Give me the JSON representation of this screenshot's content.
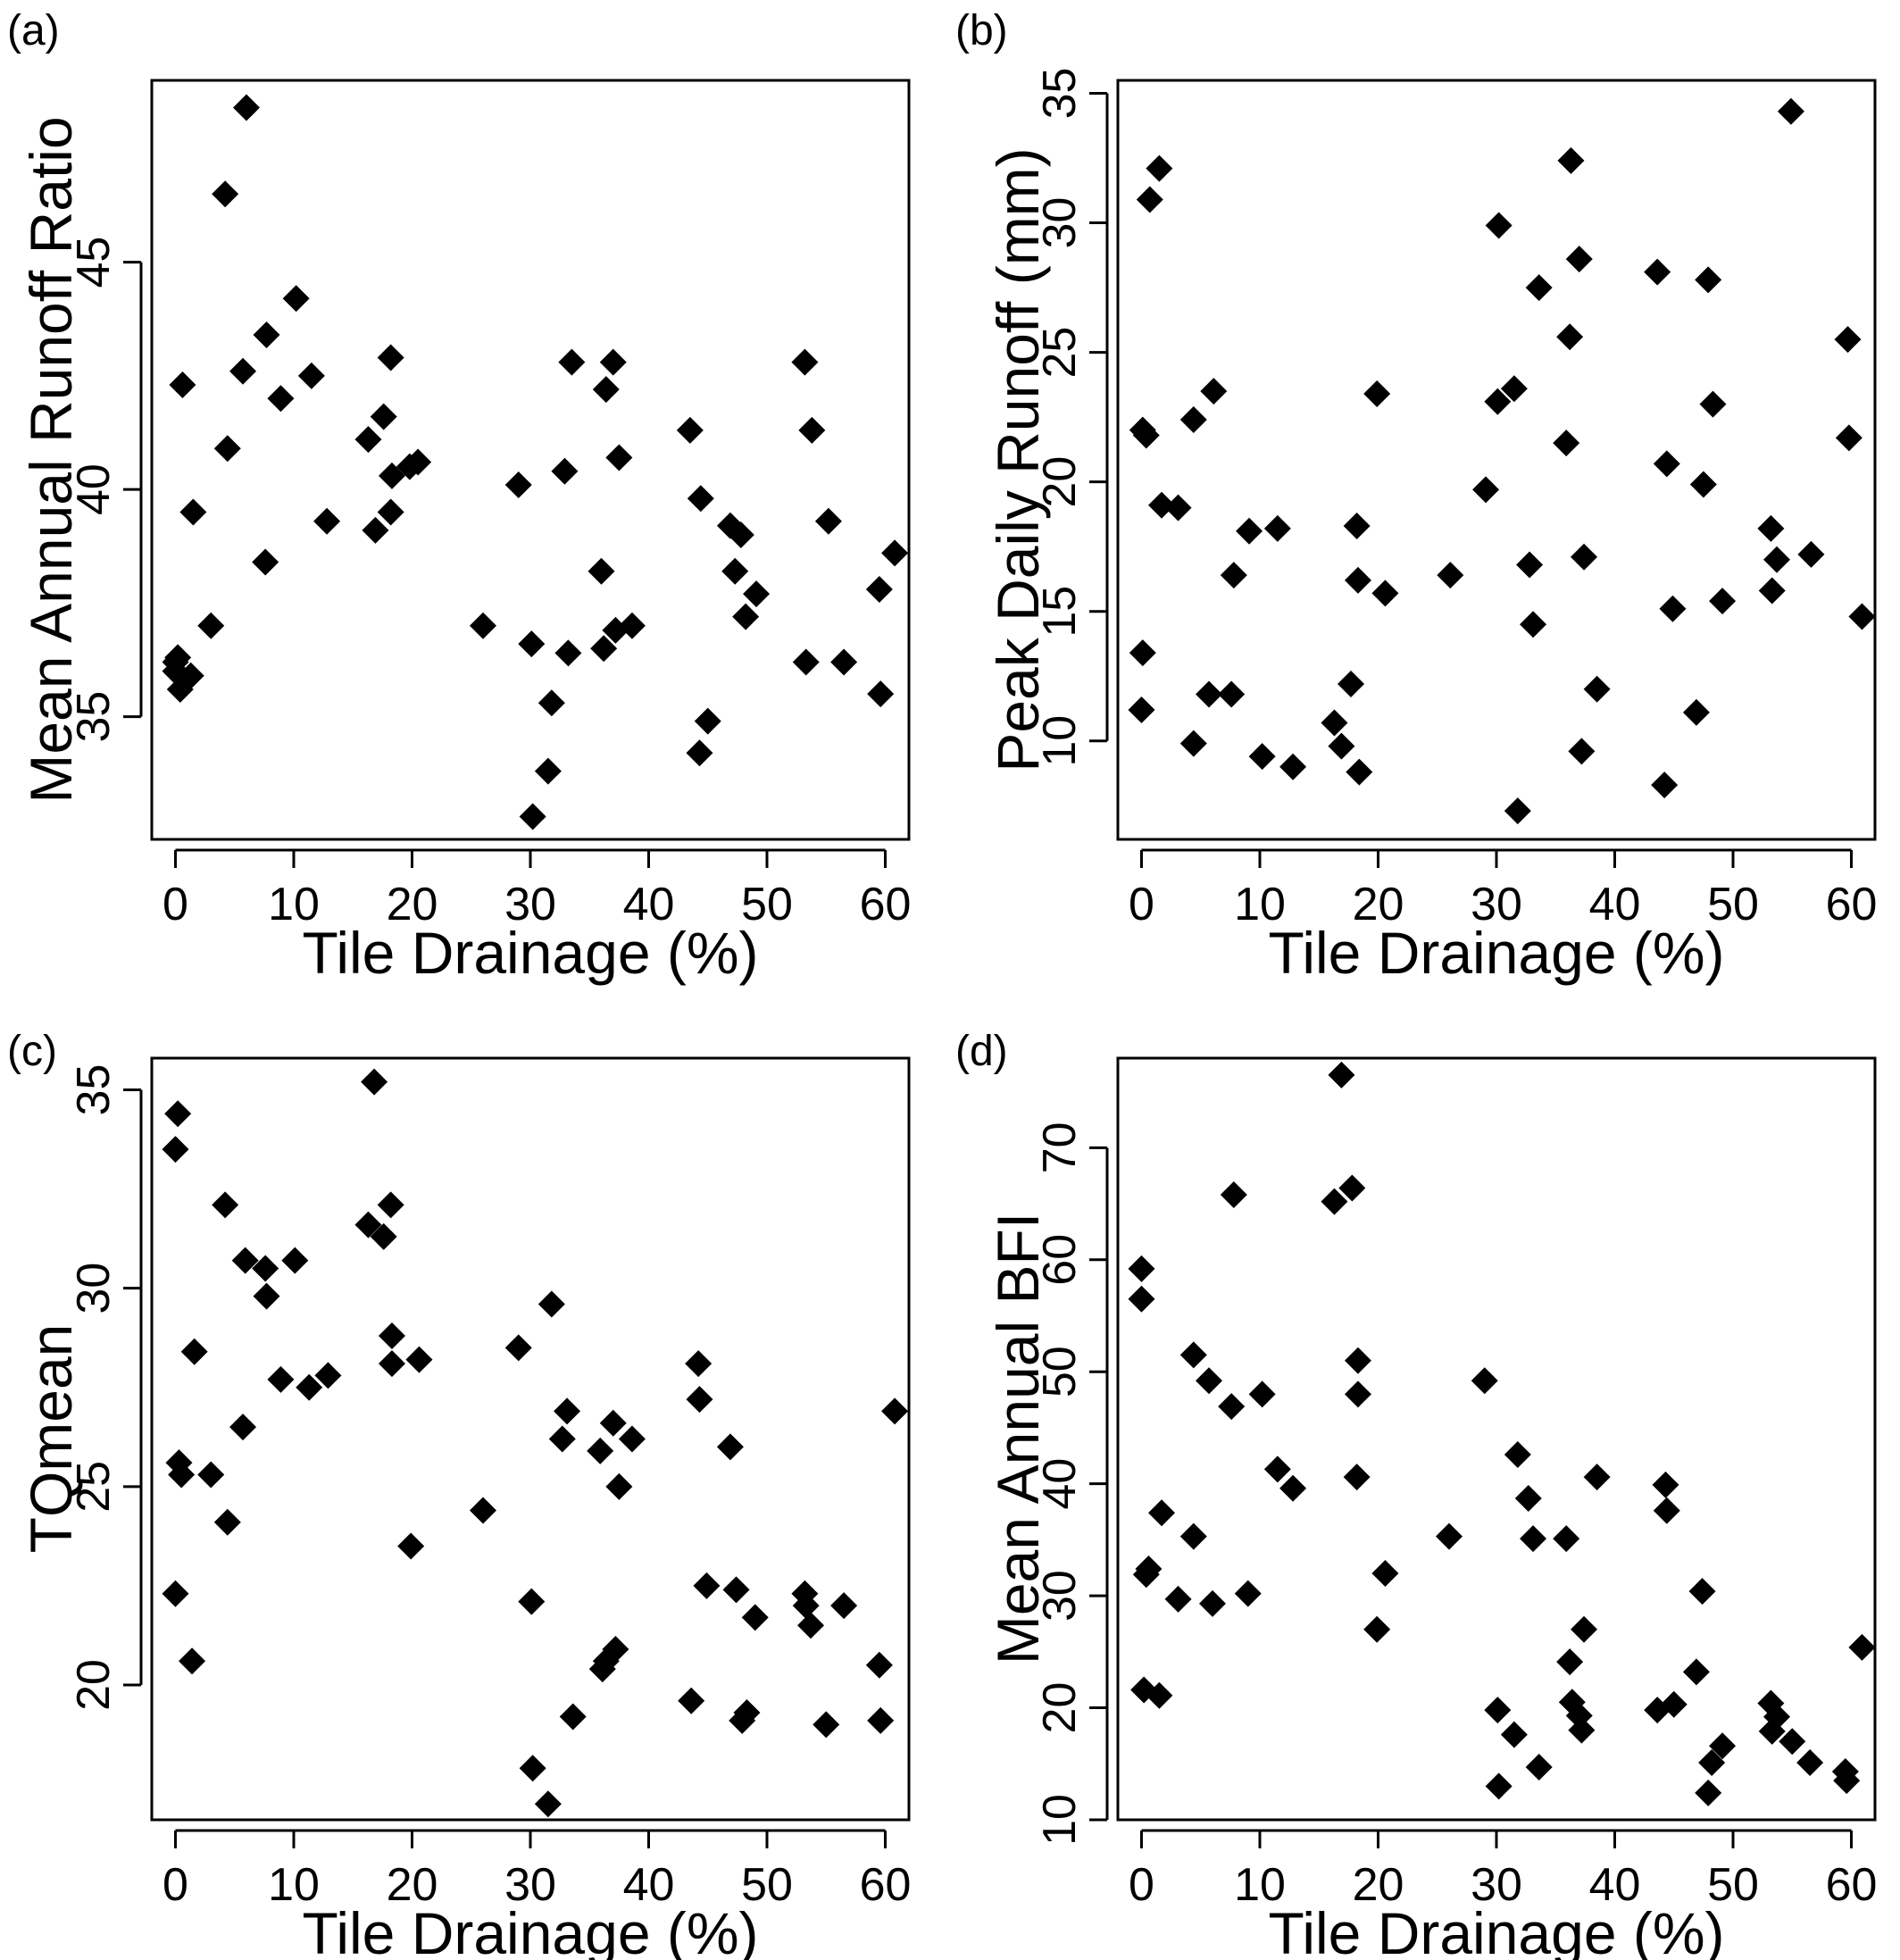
{
  "chart_data": [
    {
      "type": "scatter",
      "panel_label": "(a)",
      "xlabel": "Tile Drainage (%)",
      "ylabel": "Mean Annual Runoff Ratio",
      "xlim": [
        -2,
        62
      ],
      "ylim": [
        32.3,
        49.0
      ],
      "xticks": [
        0,
        10,
        20,
        30,
        40,
        50,
        60
      ],
      "yticks": [
        35,
        40,
        45
      ],
      "series": [
        {
          "points": [
            [
              0,
              36.0
            ],
            [
              0,
              36.2
            ],
            [
              0.2,
              36.3
            ],
            [
              0.4,
              35.6
            ],
            [
              0.6,
              42.3
            ],
            [
              1.3,
              35.9
            ],
            [
              1.5,
              39.5
            ],
            [
              3,
              37.0
            ],
            [
              4.2,
              46.5
            ],
            [
              4.4,
              40.9
            ],
            [
              5.7,
              42.6
            ],
            [
              6,
              48.4
            ],
            [
              7.6,
              38.4
            ],
            [
              7.7,
              43.4
            ],
            [
              8.9,
              42.0
            ],
            [
              10.2,
              44.2
            ],
            [
              11.5,
              42.5
            ],
            [
              12.8,
              39.3
            ],
            [
              16.3,
              41.1
            ],
            [
              16.9,
              39.1
            ],
            [
              17.6,
              41.6
            ],
            [
              18.2,
              42.9
            ],
            [
              18.3,
              40.3
            ],
            [
              18.2,
              39.5
            ],
            [
              19.8,
              40.5
            ],
            [
              20.5,
              40.6
            ],
            [
              26,
              37.0
            ],
            [
              29,
              40.1
            ],
            [
              30.1,
              36.6
            ],
            [
              30.2,
              32.8
            ],
            [
              31.5,
              33.8
            ],
            [
              31.8,
              35.3
            ],
            [
              32.9,
              40.4
            ],
            [
              33.2,
              36.4
            ],
            [
              33.5,
              42.8
            ],
            [
              36,
              38.2
            ],
            [
              36.2,
              36.5
            ],
            [
              36.4,
              42.2
            ],
            [
              37,
              42.8
            ],
            [
              37.2,
              36.9
            ],
            [
              37.5,
              40.7
            ],
            [
              38.6,
              37.0
            ],
            [
              43.5,
              41.3
            ],
            [
              44.3,
              34.2
            ],
            [
              44.4,
              39.8
            ],
            [
              45,
              34.9
            ],
            [
              46.9,
              39.2
            ],
            [
              47.3,
              38.2
            ],
            [
              47.8,
              39.0
            ],
            [
              48.2,
              37.2
            ],
            [
              49.1,
              37.7
            ],
            [
              53.2,
              42.8
            ],
            [
              53.3,
              36.2
            ],
            [
              53.8,
              41.3
            ],
            [
              55.2,
              39.3
            ],
            [
              56.5,
              36.2
            ],
            [
              59.5,
              37.8
            ],
            [
              59.6,
              35.5
            ],
            [
              60.8,
              38.6
            ]
          ]
        }
      ]
    },
    {
      "type": "scatter",
      "panel_label": "(b)",
      "xlabel": "Tile Drainage (%)",
      "ylabel": "Peak Daily Runoff (mm)",
      "xlim": [
        -2,
        62
      ],
      "ylim": [
        6.2,
        35.5
      ],
      "xticks": [
        0,
        10,
        20,
        30,
        40,
        50,
        60
      ],
      "yticks": [
        10,
        15,
        20,
        25,
        30,
        35
      ],
      "series": [
        {
          "points": [
            [
              0,
              11.2
            ],
            [
              0.1,
              13.4
            ],
            [
              0.1,
              22.0
            ],
            [
              0.4,
              21.8
            ],
            [
              0.7,
              30.9
            ],
            [
              1.5,
              32.1
            ],
            [
              1.7,
              19.1
            ],
            [
              3.1,
              19.0
            ],
            [
              4.4,
              22.4
            ],
            [
              4.4,
              9.9
            ],
            [
              5.7,
              11.8
            ],
            [
              6.1,
              23.5
            ],
            [
              7.6,
              11.8
            ],
            [
              7.8,
              16.4
            ],
            [
              9.1,
              18.1
            ],
            [
              10.2,
              9.4
            ],
            [
              11.5,
              18.2
            ],
            [
              12.8,
              9.0
            ],
            [
              16.3,
              10.7
            ],
            [
              16.9,
              9.8
            ],
            [
              17.7,
              12.2
            ],
            [
              18.2,
              18.3
            ],
            [
              18.4,
              8.8
            ],
            [
              18.3,
              16.2
            ],
            [
              19.9,
              23.4
            ],
            [
              20.6,
              15.7
            ],
            [
              26.1,
              16.4
            ],
            [
              29.1,
              19.7
            ],
            [
              30.1,
              23.1
            ],
            [
              30.2,
              29.9
            ],
            [
              31.5,
              23.6
            ],
            [
              31.8,
              7.3
            ],
            [
              32.8,
              16.8
            ],
            [
              33.1,
              14.5
            ],
            [
              33.6,
              27.5
            ],
            [
              35.9,
              21.5
            ],
            [
              36.2,
              25.6
            ],
            [
              36.3,
              32.4
            ],
            [
              37,
              28.6
            ],
            [
              37.2,
              9.6
            ],
            [
              37.4,
              17.1
            ],
            [
              38.5,
              12.0
            ],
            [
              43.6,
              28.1
            ],
            [
              44.2,
              8.3
            ],
            [
              44.4,
              20.7
            ],
            [
              44.9,
              15.1
            ],
            [
              46.9,
              11.1
            ],
            [
              47.5,
              19.9
            ],
            [
              47.9,
              27.8
            ],
            [
              48.3,
              23.0
            ],
            [
              49.1,
              15.4
            ],
            [
              53.2,
              18.2
            ],
            [
              53.3,
              15.8
            ],
            [
              53.7,
              17.0
            ],
            [
              54.9,
              34.3
            ],
            [
              56.6,
              17.2
            ],
            [
              59.7,
              25.5
            ],
            [
              59.8,
              21.7
            ],
            [
              60.9,
              14.8
            ]
          ]
        }
      ]
    },
    {
      "type": "scatter",
      "panel_label": "(c)",
      "xlabel": "Tile Drainage (%)",
      "ylabel": "TQmean",
      "xlim": [
        -2,
        62
      ],
      "ylim": [
        16.6,
        35.8
      ],
      "xticks": [
        0,
        10,
        20,
        30,
        40,
        50,
        60
      ],
      "yticks": [
        20,
        25,
        30,
        35
      ],
      "series": [
        {
          "points": [
            [
              0,
              33.5
            ],
            [
              0,
              22.3
            ],
            [
              0.2,
              34.4
            ],
            [
              0.3,
              25.6
            ],
            [
              0.5,
              25.3
            ],
            [
              1.4,
              20.6
            ],
            [
              1.6,
              28.4
            ],
            [
              3,
              25.3
            ],
            [
              4.2,
              32.1
            ],
            [
              4.4,
              24.1
            ],
            [
              5.7,
              26.5
            ],
            [
              5.9,
              30.7
            ],
            [
              7.6,
              30.5
            ],
            [
              7.7,
              29.8
            ],
            [
              8.9,
              27.7
            ],
            [
              10.1,
              30.7
            ],
            [
              11.3,
              27.5
            ],
            [
              12.9,
              27.8
            ],
            [
              16.3,
              31.6
            ],
            [
              16.8,
              35.2
            ],
            [
              17.6,
              31.3
            ],
            [
              18.2,
              32.1
            ],
            [
              18.3,
              28.8
            ],
            [
              18.3,
              28.1
            ],
            [
              19.9,
              23.5
            ],
            [
              20.6,
              28.2
            ],
            [
              26,
              24.4
            ],
            [
              29,
              28.5
            ],
            [
              30.1,
              22.1
            ],
            [
              30.2,
              17.9
            ],
            [
              31.5,
              17.0
            ],
            [
              31.8,
              29.6
            ],
            [
              32.7,
              26.2
            ],
            [
              33.1,
              26.9
            ],
            [
              33.6,
              19.2
            ],
            [
              35.9,
              25.9
            ],
            [
              36.1,
              20.4
            ],
            [
              36.4,
              20.6
            ],
            [
              37,
              26.6
            ],
            [
              37.2,
              20.9
            ],
            [
              37.5,
              25.0
            ],
            [
              38.6,
              26.2
            ],
            [
              43.6,
              19.6
            ],
            [
              44.2,
              28.1
            ],
            [
              44.3,
              27.2
            ],
            [
              44.9,
              22.5
            ],
            [
              46.9,
              26.0
            ],
            [
              47.4,
              22.4
            ],
            [
              47.9,
              19.1
            ],
            [
              48.3,
              19.3
            ],
            [
              49,
              21.7
            ],
            [
              53.2,
              22.3
            ],
            [
              53.3,
              22.0
            ],
            [
              53.7,
              21.5
            ],
            [
              55,
              19.0
            ],
            [
              56.5,
              22.0
            ],
            [
              59.5,
              20.5
            ],
            [
              59.6,
              19.1
            ],
            [
              60.8,
              26.9
            ]
          ]
        }
      ]
    },
    {
      "type": "scatter",
      "panel_label": "(d)",
      "xlabel": "Tile Drainage (%)",
      "ylabel": "Mean Annual BFI",
      "xlim": [
        -2,
        62
      ],
      "ylim": [
        10,
        78
      ],
      "xticks": [
        0,
        10,
        20,
        30,
        40,
        50,
        60
      ],
      "yticks": [
        10,
        20,
        30,
        40,
        50,
        60,
        70
      ],
      "series": [
        {
          "points": [
            [
              0,
              59.2
            ],
            [
              0,
              56.5
            ],
            [
              0.2,
              21.6
            ],
            [
              0.4,
              31.9
            ],
            [
              0.6,
              32.4
            ],
            [
              1.5,
              21.1
            ],
            [
              1.7,
              37.4
            ],
            [
              3.1,
              29.7
            ],
            [
              4.4,
              51.5
            ],
            [
              4.4,
              35.3
            ],
            [
              5.7,
              49.2
            ],
            [
              6,
              29.3
            ],
            [
              7.6,
              46.9
            ],
            [
              7.8,
              65.8
            ],
            [
              9,
              30.2
            ],
            [
              10.2,
              48.0
            ],
            [
              11.5,
              41.3
            ],
            [
              12.8,
              39.6
            ],
            [
              16.3,
              65.2
            ],
            [
              16.9,
              76.5
            ],
            [
              17.8,
              66.4
            ],
            [
              18.3,
              51.0
            ],
            [
              18.3,
              48.0
            ],
            [
              18.2,
              40.6
            ],
            [
              19.9,
              27.0
            ],
            [
              20.6,
              32.0
            ],
            [
              26,
              35.3
            ],
            [
              29,
              49.2
            ],
            [
              30.1,
              19.8
            ],
            [
              30.2,
              13.0
            ],
            [
              31.5,
              17.6
            ],
            [
              31.8,
              42.6
            ],
            [
              32.7,
              38.7
            ],
            [
              33.1,
              35.1
            ],
            [
              33.6,
              14.7
            ],
            [
              35.9,
              35.1
            ],
            [
              36.2,
              24.1
            ],
            [
              36.4,
              20.5
            ],
            [
              37,
              19.3
            ],
            [
              37.2,
              18.0
            ],
            [
              37.4,
              27.0
            ],
            [
              38.5,
              40.6
            ],
            [
              43.6,
              19.8
            ],
            [
              44.3,
              39.9
            ],
            [
              44.4,
              37.6
            ],
            [
              45,
              20.3
            ],
            [
              46.9,
              23.2
            ],
            [
              47.4,
              30.4
            ],
            [
              47.9,
              12.4
            ],
            [
              48.2,
              15.1
            ],
            [
              49.1,
              16.6
            ],
            [
              53.2,
              20.4
            ],
            [
              53.3,
              17.9
            ],
            [
              53.7,
              19.2
            ],
            [
              55,
              17.0
            ],
            [
              56.5,
              15.1
            ],
            [
              59.5,
              14.3
            ],
            [
              59.6,
              13.5
            ],
            [
              60.9,
              25.4
            ]
          ]
        }
      ]
    }
  ]
}
